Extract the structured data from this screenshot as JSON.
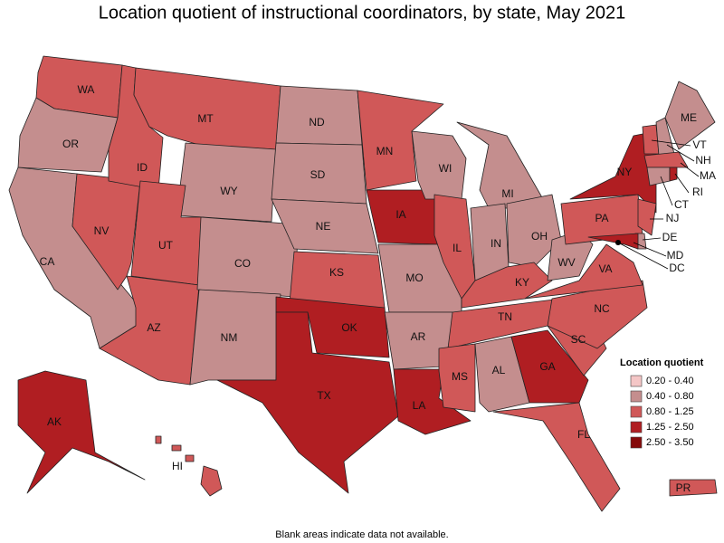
{
  "title": "Location quotient of instructional coordinators, by state, May 2021",
  "note": "Blank areas indicate data not available.",
  "legend": {
    "title": "Location quotient",
    "items": [
      {
        "label": "0.20 - 0.40",
        "color": "#f4c6c6"
      },
      {
        "label": "0.40 - 0.80",
        "color": "#c48e8e"
      },
      {
        "label": "0.80 - 1.25",
        "color": "#d05858"
      },
      {
        "label": "1.25 - 2.50",
        "color": "#b01e22"
      },
      {
        "label": "2.50 - 3.50",
        "color": "#850a0a"
      }
    ]
  },
  "states": [
    {
      "label": "WA",
      "range": "0.80 - 1.25"
    },
    {
      "label": "OR",
      "range": "0.40 - 0.80"
    },
    {
      "label": "CA",
      "range": "0.40 - 0.80"
    },
    {
      "label": "NV",
      "range": "0.80 - 1.25"
    },
    {
      "label": "ID",
      "range": "0.80 - 1.25"
    },
    {
      "label": "MT",
      "range": "0.80 - 1.25"
    },
    {
      "label": "WY",
      "range": "0.40 - 0.80"
    },
    {
      "label": "UT",
      "range": "0.80 - 1.25"
    },
    {
      "label": "AZ",
      "range": "0.80 - 1.25"
    },
    {
      "label": "CO",
      "range": "0.40 - 0.80"
    },
    {
      "label": "NM",
      "range": "0.40 - 0.80"
    },
    {
      "label": "ND",
      "range": "0.40 - 0.80"
    },
    {
      "label": "SD",
      "range": "0.40 - 0.80"
    },
    {
      "label": "NE",
      "range": "0.40 - 0.80"
    },
    {
      "label": "KS",
      "range": "0.80 - 1.25"
    },
    {
      "label": "OK",
      "range": "1.25 - 2.50"
    },
    {
      "label": "TX",
      "range": "1.25 - 2.50"
    },
    {
      "label": "MN",
      "range": "0.80 - 1.25"
    },
    {
      "label": "IA",
      "range": "1.25 - 2.50"
    },
    {
      "label": "MO",
      "range": "0.40 - 0.80"
    },
    {
      "label": "AR",
      "range": "0.40 - 0.80"
    },
    {
      "label": "LA",
      "range": "1.25 - 2.50"
    },
    {
      "label": "WI",
      "range": "0.40 - 0.80"
    },
    {
      "label": "IL",
      "range": "0.80 - 1.25"
    },
    {
      "label": "MI",
      "range": "0.40 - 0.80"
    },
    {
      "label": "IN",
      "range": "0.40 - 0.80"
    },
    {
      "label": "OH",
      "range": "0.40 - 0.80"
    },
    {
      "label": "KY",
      "range": "0.80 - 1.25"
    },
    {
      "label": "TN",
      "range": "0.80 - 1.25"
    },
    {
      "label": "MS",
      "range": "0.80 - 1.25"
    },
    {
      "label": "AL",
      "range": "0.40 - 0.80"
    },
    {
      "label": "GA",
      "range": "1.25 - 2.50"
    },
    {
      "label": "FL",
      "range": "0.80 - 1.25"
    },
    {
      "label": "SC",
      "range": "0.80 - 1.25"
    },
    {
      "label": "NC",
      "range": "0.80 - 1.25"
    },
    {
      "label": "VA",
      "range": "0.80 - 1.25"
    },
    {
      "label": "WV",
      "range": "0.40 - 0.80"
    },
    {
      "label": "PA",
      "range": "0.80 - 1.25"
    },
    {
      "label": "NY",
      "range": "1.25 - 2.50"
    },
    {
      "label": "VT",
      "range": "0.80 - 1.25"
    },
    {
      "label": "NH",
      "range": "0.40 - 0.80"
    },
    {
      "label": "ME",
      "range": "0.40 - 0.80"
    },
    {
      "label": "MA",
      "range": "0.80 - 1.25"
    },
    {
      "label": "CT",
      "range": "0.40 - 0.80"
    },
    {
      "label": "RI",
      "range": "1.25 - 2.50"
    },
    {
      "label": "NJ",
      "range": "0.80 - 1.25"
    },
    {
      "label": "DE",
      "range": "0.40 - 0.80"
    },
    {
      "label": "MD",
      "range": "1.25 - 2.50"
    },
    {
      "label": "DC",
      "range": "1.25 - 2.50"
    },
    {
      "label": "AK",
      "range": "1.25 - 2.50"
    },
    {
      "label": "HI",
      "range": "0.80 - 1.25"
    },
    {
      "label": "PR",
      "range": "0.80 - 1.25"
    }
  ]
}
